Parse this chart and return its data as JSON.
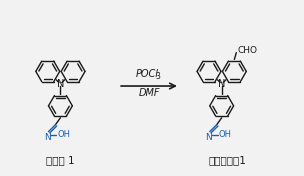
{
  "bg_color": "#f2f2f2",
  "bond_color": "#1a1a1a",
  "noh_color": "#1a5faf",
  "arrow_color": "#1a1a1a",
  "label_left": "中间体 1",
  "label_right": "探针化合物1",
  "reagent1": "POCl",
  "reagent1_sub": "3",
  "reagent2": "DMF",
  "fig_width": 3.04,
  "fig_height": 1.76,
  "dpi": 100,
  "ring_r": 12,
  "lw": 1.0
}
